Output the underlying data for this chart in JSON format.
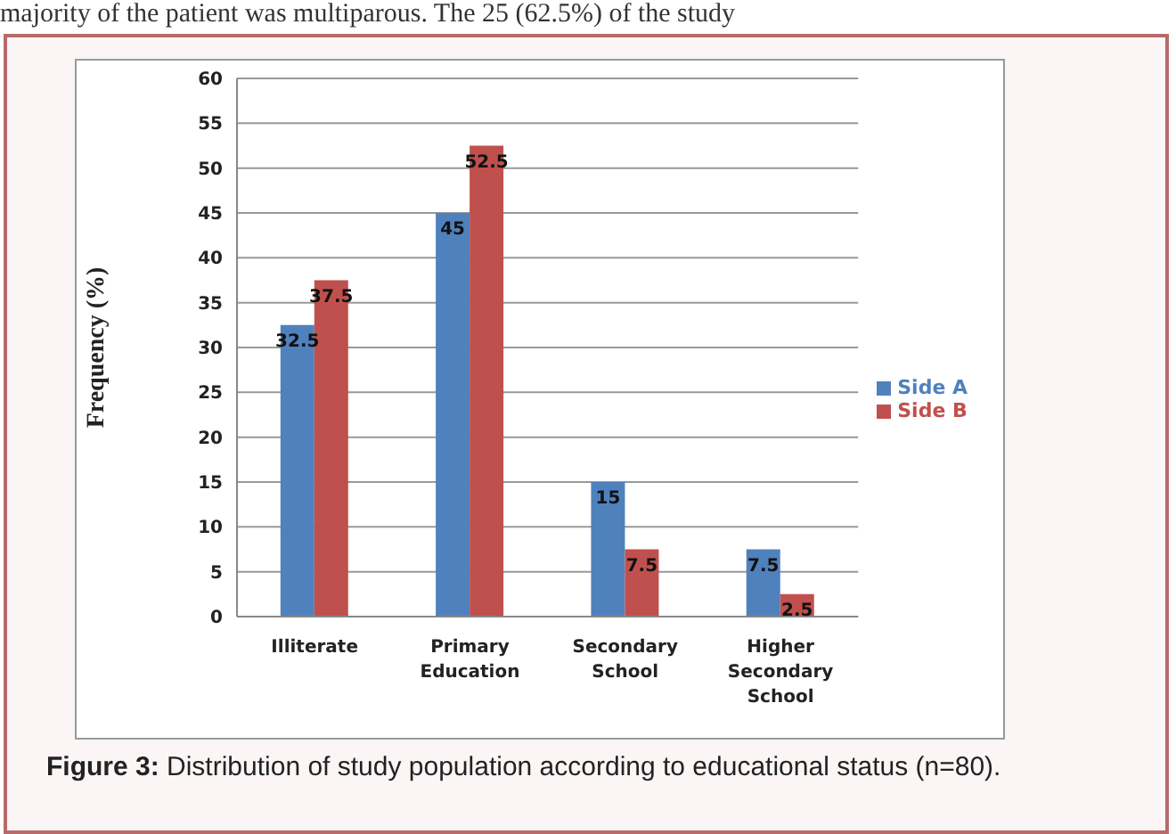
{
  "chart_data": {
    "type": "bar",
    "ylabel": "Frequency (%)",
    "categories": [
      "Illiterate",
      "Primary Education",
      "Secondary School",
      "Higher Secondary School"
    ],
    "series": [
      {
        "name": "Side A",
        "color": "#4f81bd",
        "values": [
          32.5,
          45,
          15,
          7.5
        ]
      },
      {
        "name": "Side B",
        "color": "#c0504d",
        "values": [
          37.5,
          52.5,
          7.5,
          2.5
        ]
      }
    ],
    "ylim": [
      0,
      60
    ],
    "yticks": [
      0,
      5,
      10,
      15,
      20,
      25,
      30,
      35,
      40,
      45,
      50,
      55,
      60
    ],
    "grid": "y",
    "legend": "right",
    "data_labels": true,
    "annotations": [
      "majority of the patient was multiparous. The 25 (62.5%) of the study",
      "Figure 3: Distribution of study population according to educational status (n=80)."
    ]
  }
}
